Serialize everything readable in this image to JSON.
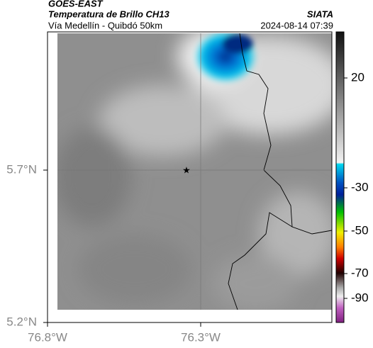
{
  "header": {
    "satellite": "GOES-EAST",
    "title": "Temperatura de Brillo CH13",
    "subtitle": "Vía Medellín - Quibdó 50km",
    "source": "SIATA",
    "datetime": "2024-08-14 07:39"
  },
  "map": {
    "lat_labels": [
      "5.7°N",
      "5.2°N"
    ],
    "lon_labels": [
      "76.8°W",
      "76.3°W"
    ]
  },
  "colorbar": {
    "ticks": [
      20,
      -30,
      -50,
      -70,
      -90
    ]
  }
}
